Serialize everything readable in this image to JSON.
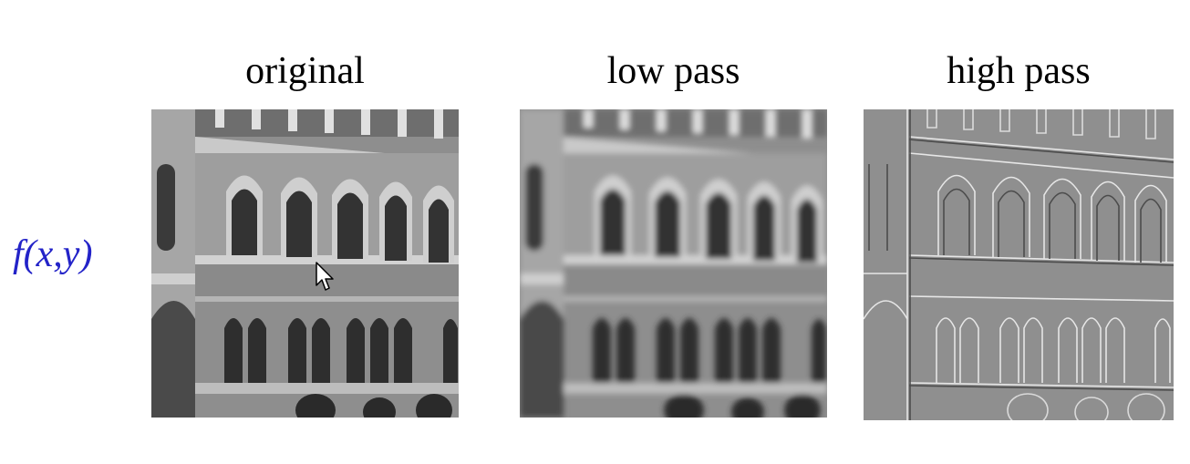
{
  "function_label": "f(x,y)",
  "panels": [
    {
      "title": "original",
      "kind": "original"
    },
    {
      "title": "low pass",
      "kind": "low-pass"
    },
    {
      "title": "high pass",
      "kind": "high-pass"
    }
  ],
  "icons": {
    "cursor": "mouse-pointer-icon"
  }
}
